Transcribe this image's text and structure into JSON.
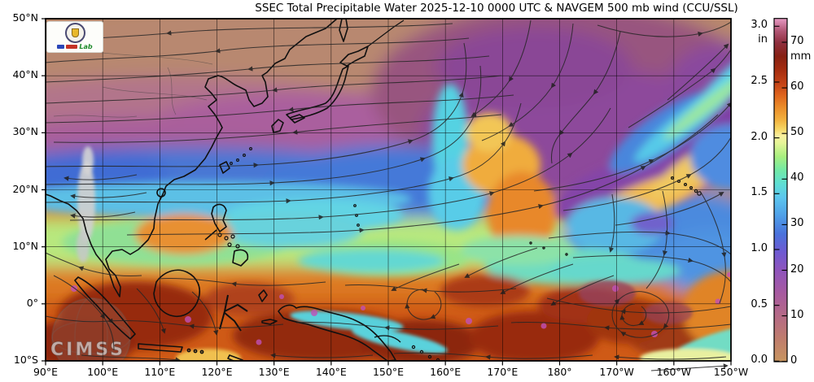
{
  "title": "SSEC Total Precipitable Water  2025-12-10 0000 UTC & NAVGEM 500 mb wind (CCU/SSL)",
  "axes": {
    "lon_ticks": [
      "90°E",
      "100°E",
      "110°E",
      "120°E",
      "130°E",
      "140°E",
      "150°E",
      "160°E",
      "170°E",
      "180°",
      "170°W",
      "160°W",
      "150°W"
    ],
    "lat_ticks": [
      "50°N",
      "40°N",
      "30°N",
      "20°N",
      "10°N",
      "0°",
      "10°S"
    ]
  },
  "colorbar": {
    "unit_left": "in",
    "unit_right": "mm",
    "ticks_in": [
      "3.0",
      "2.5",
      "2.0",
      "1.5",
      "1.0",
      "0.5",
      "0.0"
    ],
    "ticks_mm": [
      "70",
      "60",
      "50",
      "40",
      "30",
      "20",
      "10",
      "0"
    ],
    "top_mm": 75.3,
    "gradient_mm": [
      [
        0,
        "#c8955f"
      ],
      [
        5,
        "#bf7d6d"
      ],
      [
        10,
        "#b56a86"
      ],
      [
        15,
        "#a75aa0"
      ],
      [
        20,
        "#8f54bc"
      ],
      [
        24,
        "#6f5ad2"
      ],
      [
        28,
        "#4a72dc"
      ],
      [
        32,
        "#4f9fe8"
      ],
      [
        36,
        "#5cc6ee"
      ],
      [
        39,
        "#5edfd4"
      ],
      [
        42,
        "#72e9a6"
      ],
      [
        45,
        "#a8ef7f"
      ],
      [
        48,
        "#e6f598"
      ],
      [
        49.5,
        "#f8f0a0"
      ],
      [
        51,
        "#f6d765"
      ],
      [
        53,
        "#f2b23f"
      ],
      [
        56,
        "#ea8a28"
      ],
      [
        58.5,
        "#de641d"
      ],
      [
        61,
        "#c44316"
      ],
      [
        64,
        "#a52d10"
      ],
      [
        67,
        "#872113"
      ],
      [
        70,
        "#8f2f3f"
      ],
      [
        72.5,
        "#b05573"
      ],
      [
        74.5,
        "#d887ae"
      ],
      [
        75.3,
        "#e79bc4"
      ]
    ]
  },
  "logos": {
    "watermark_text": "CIMSS",
    "lab_badge_text": "Lab"
  },
  "chart_data": {
    "type": "heatmap",
    "title": "SSEC Total Precipitable Water  2025-12-10 0000 UTC & NAVGEM 500 mb wind (CCU/SSL)",
    "product": "SSEC Total Precipitable Water",
    "valid_time": "2025-12-10 0000 UTC",
    "wind_overlay": "NAVGEM 500 mb wind",
    "credit": "CCU/SSL",
    "x_axis": {
      "label": "longitude",
      "ticks": [
        "90°E",
        "100°E",
        "110°E",
        "120°E",
        "130°E",
        "140°E",
        "150°E",
        "160°E",
        "170°E",
        "180°",
        "170°W",
        "160°W",
        "150°W"
      ],
      "range": "90°E to 150°W"
    },
    "y_axis": {
      "label": "latitude",
      "ticks": [
        "50°N",
        "40°N",
        "30°N",
        "20°N",
        "10°N",
        "0°",
        "10°S"
      ],
      "range": "10°S to 50°N"
    },
    "grid": "10 degree graticule, black lines",
    "colorbar_scale": {
      "inches": [
        0,
        0.5,
        1.0,
        1.5,
        2.0,
        2.5,
        3.0
      ],
      "mm": [
        0,
        10,
        20,
        30,
        40,
        50,
        60,
        70
      ]
    },
    "field_features": [
      {
        "region": "40-50N across northern Asia / NW Pacific",
        "tpw_mm": "5-15",
        "appearance": "tan-rose very dry air"
      },
      {
        "region": "30-50N mid-Pacific, 155E-165W",
        "tpw_mm": "10-22",
        "appearance": "magenta-purple dry tongue sweeping southwest"
      },
      {
        "region": "25-40N near 160E",
        "tpw_mm": "35-55",
        "appearance": "cyan/orange moisture plume curving northeast"
      },
      {
        "region": "20-25N, 90-140E south of China",
        "tpw_mm": "25-38",
        "appearance": "blue-cyan band"
      },
      {
        "region": "10-25N near Hawaii, 180-150W",
        "tpw_mm": "25-35",
        "appearance": "blue dry slot"
      },
      {
        "region": "tropics south of 12N, maritime continent to central Pacific",
        "tpw_mm": "45-70+",
        "appearance": "orange to dark red moist air with magenta speckles"
      },
      {
        "region": "near 97E, 10-25N",
        "tpw_mm": "no data",
        "appearance": "gray streak"
      }
    ],
    "wind_features": [
      "northeasterly flow across northern Asia band",
      "southward plunge around mid-Pacific trough near 165E-180",
      "southwesterlies sweeping northeast along moisture band east of 160E",
      "anticyclonic gyre near Hawaii",
      "tropical easterlies south of 20N",
      "closed vortex near 170W just south of the equator"
    ]
  }
}
